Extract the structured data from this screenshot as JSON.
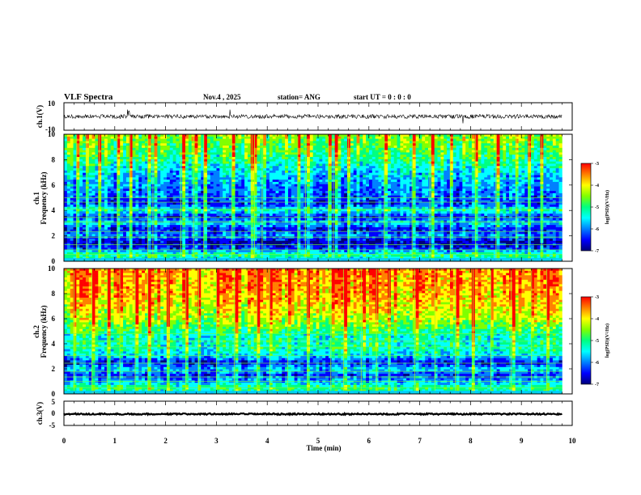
{
  "header": {
    "title": "VLF Spectra",
    "date": "Nov.4 , 2025",
    "station": "station= ANG",
    "start": "start UT = 0 : 0 : 0"
  },
  "colors": {
    "colormap": [
      "#00007a",
      "#0000ff",
      "#0080ff",
      "#00ffff",
      "#00ff80",
      "#80ff00",
      "#ffff00",
      "#ff8000",
      "#ff0000",
      "#ffffff"
    ],
    "trace": "#000000"
  },
  "chart_data": [
    {
      "type": "line",
      "name": "ch1-waveform",
      "ylabel": "ch.1(V)",
      "ylim": [
        -10,
        10
      ],
      "y_ticks": [
        "10",
        "-10"
      ],
      "x_range": [
        0,
        10
      ],
      "baseline": 0,
      "noise_amplitude": 1.5,
      "spikes": [
        [
          1.25,
          5
        ],
        [
          3.27,
          5
        ],
        [
          7.85,
          -5
        ],
        [
          1.28,
          4
        ]
      ]
    },
    {
      "type": "heatmap",
      "name": "ch1-spectrogram",
      "ylabel": "ch.1\nFrequency (kHz)",
      "ylabel_lines": [
        "ch.1",
        "Frequency (kHz)"
      ],
      "ylim": [
        0,
        10
      ],
      "y_ticks": [
        "0",
        "2",
        "4",
        "6",
        "8",
        "10"
      ],
      "x_range": [
        0,
        9.8
      ],
      "colorbar": {
        "label": "log(PSD)(V²/Hz)",
        "range": [
          -7,
          -3
        ],
        "ticks": [
          "-3",
          "-4",
          "-5",
          "-6",
          "-7"
        ]
      },
      "profile": [
        [
          0,
          -5.6
        ],
        [
          0.5,
          -5.0
        ],
        [
          1,
          -6.2
        ],
        [
          1.5,
          -6.6
        ],
        [
          2,
          -5.8
        ],
        [
          2.5,
          -6.4
        ],
        [
          3,
          -5.5
        ],
        [
          3.5,
          -6.3
        ],
        [
          4,
          -5.2
        ],
        [
          4.5,
          -6.2
        ],
        [
          5,
          -6.0
        ],
        [
          6,
          -5.8
        ],
        [
          7,
          -5.5
        ],
        [
          8,
          -5.0
        ],
        [
          9,
          -4.7
        ],
        [
          10,
          -4.4
        ]
      ],
      "lines_khz": [
        0.55,
        0.9,
        1.3,
        1.9,
        2.35,
        3.1,
        3.45,
        4.1,
        4.65,
        5.0
      ],
      "bursts_min": [
        0.25,
        0.45,
        0.7,
        1.05,
        1.3,
        1.65,
        1.75,
        2.3,
        2.55,
        2.75,
        3.3,
        3.7,
        3.75,
        3.9,
        4.6,
        4.75,
        5.2,
        5.3,
        5.6,
        6.3,
        6.85,
        7.2,
        7.6,
        8.1,
        8.5,
        8.9,
        9.15,
        9.4
      ]
    },
    {
      "type": "heatmap",
      "name": "ch2-spectrogram",
      "ylabel": "ch.2\nFrequency (kHz)",
      "ylabel_lines": [
        "ch.2",
        "Frequency (kHz)"
      ],
      "ylim": [
        0,
        10
      ],
      "y_ticks": [
        "0",
        "2",
        "4",
        "6",
        "8",
        "10"
      ],
      "x_range": [
        0,
        9.8
      ],
      "colorbar": {
        "label": "log(PSD)(V²/Hz)",
        "range": [
          -7,
          -3
        ],
        "ticks": [
          "-3",
          "-4",
          "-5",
          "-6",
          "-7"
        ]
      },
      "profile": [
        [
          0,
          -5.3
        ],
        [
          0.5,
          -5.0
        ],
        [
          1,
          -5.8
        ],
        [
          1.5,
          -6.2
        ],
        [
          2,
          -5.6
        ],
        [
          2.5,
          -6.4
        ],
        [
          3,
          -5.6
        ],
        [
          3.5,
          -5.3
        ],
        [
          4,
          -5.2
        ],
        [
          4.5,
          -5.3
        ],
        [
          5,
          -5.0
        ],
        [
          6,
          -4.4
        ],
        [
          7,
          -4.1
        ],
        [
          8,
          -3.9
        ],
        [
          9,
          -3.8
        ],
        [
          10,
          -3.7
        ]
      ],
      "lines_khz": [
        0.5,
        1.0,
        1.35,
        1.8,
        2.45,
        3.05,
        3.75,
        4.2,
        4.8
      ],
      "bursts_min": [
        0.2,
        0.55,
        0.85,
        1.1,
        1.4,
        1.65,
        2.05,
        2.4,
        2.65,
        3.0,
        3.35,
        3.8,
        4.05,
        4.4,
        4.8,
        5.25,
        5.5,
        5.85,
        6.15,
        6.4,
        6.9,
        7.3,
        7.7,
        8.05,
        8.4,
        8.8,
        9.2,
        9.5
      ]
    },
    {
      "type": "line",
      "name": "ch3-waveform",
      "ylabel": "ch.3(V)",
      "ylim": [
        -5,
        5
      ],
      "y_ticks": [
        "5",
        "0",
        "-5"
      ],
      "x_range": [
        0,
        9.8
      ],
      "baseline": -0.3,
      "noise_amplitude": 0.3
    }
  ],
  "x_axis": {
    "label": "Time (min)",
    "range": [
      0,
      10
    ],
    "ticks": [
      "0",
      "1",
      "2",
      "3",
      "4",
      "5",
      "6",
      "7",
      "8",
      "9",
      "10"
    ]
  }
}
